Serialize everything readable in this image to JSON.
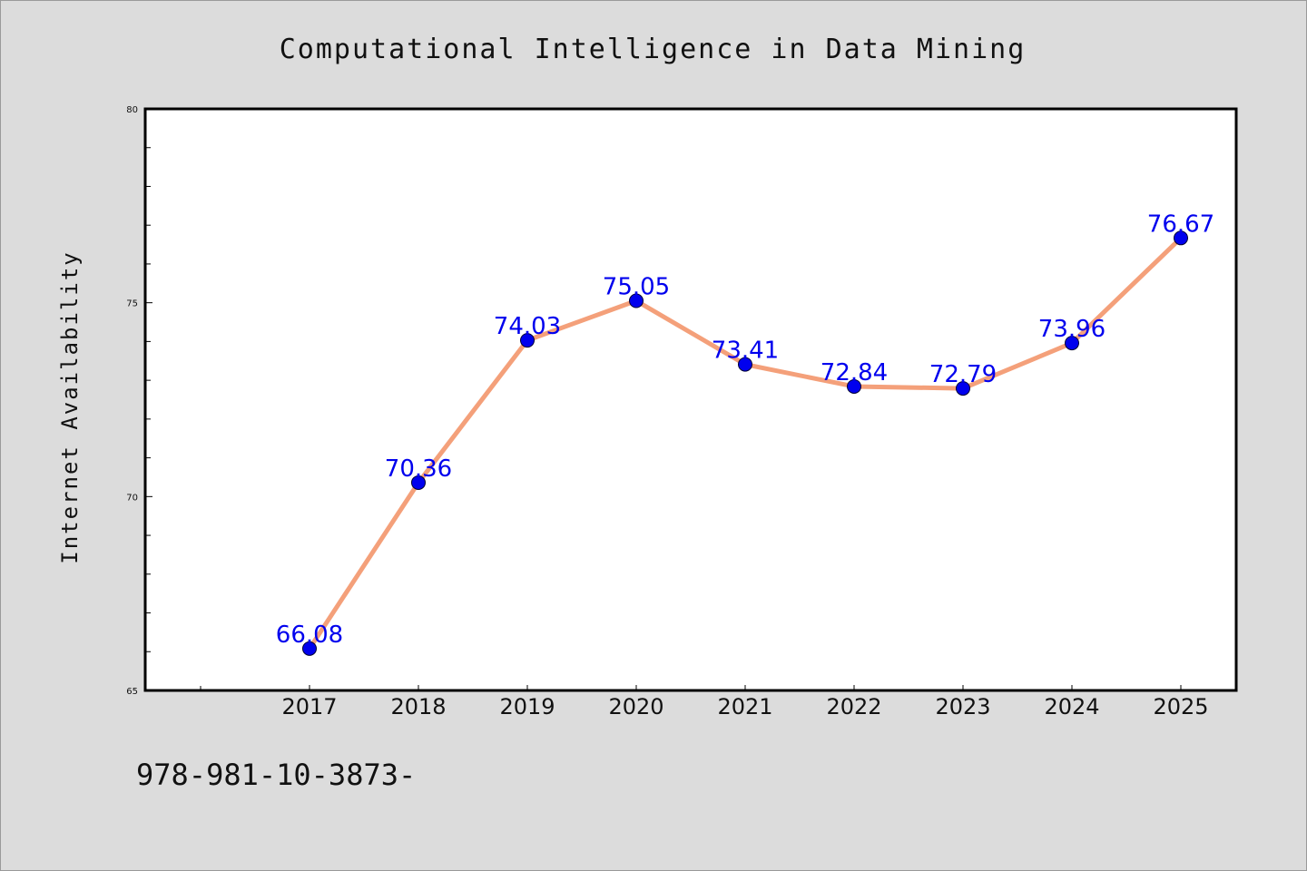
{
  "chart_data": {
    "type": "line",
    "title": "Computational Intelligence in Data Mining",
    "xlabel": "",
    "ylabel": "Internet Availability",
    "categories": [
      "2017",
      "2018",
      "2019",
      "2020",
      "2021",
      "2022",
      "2023",
      "2024",
      "2025"
    ],
    "values": [
      66.08,
      70.36,
      74.03,
      75.05,
      73.41,
      72.84,
      72.79,
      73.96,
      76.67
    ],
    "data_labels": [
      "66.08",
      "70.36",
      "74.03",
      "75.05",
      "73.41",
      "72.84",
      "72.79",
      "73.96",
      "76.67"
    ],
    "ylim": [
      65,
      80
    ],
    "yticks": [
      "65",
      "70",
      "75",
      "80"
    ],
    "grid": false,
    "legend": "none",
    "line_color": "#f4a07a",
    "marker_color": "#0000ee",
    "label_color": "#0000ee"
  },
  "footer_text": "978-981-10-3873-"
}
